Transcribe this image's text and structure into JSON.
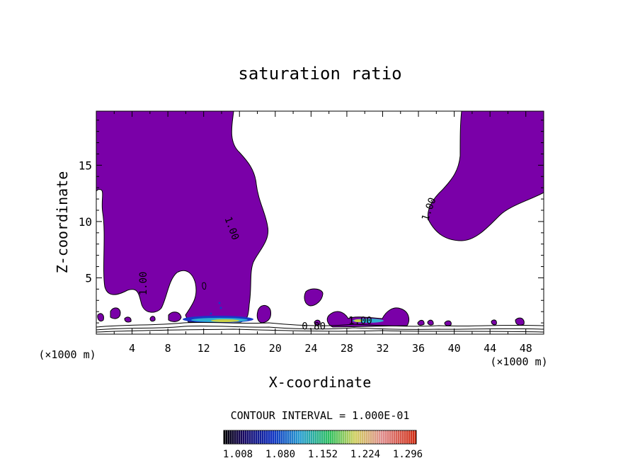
{
  "chart_data": {
    "type": "contour",
    "title": "saturation ratio",
    "xlabel": "X-coordinate",
    "ylabel": "Z-coordinate",
    "x_unit_left": "(×1000 m)",
    "x_unit_right": "(×1000 m)",
    "xlim": [
      0,
      50
    ],
    "ylim": [
      0,
      19.8
    ],
    "x_ticks": [
      4,
      8,
      12,
      16,
      20,
      24,
      28,
      32,
      36,
      40,
      44,
      48
    ],
    "y_ticks": [
      5,
      10,
      15
    ],
    "contour_labels": [
      {
        "text": "1.00",
        "x": 5.6,
        "z": 4.5
      },
      {
        "text": "1.00",
        "x": 14.8,
        "z": 9.3
      },
      {
        "text": "1.00",
        "x": 37.5,
        "z": 11.0
      },
      {
        "text": "1.00",
        "x": 29.5,
        "z": 0.9
      },
      {
        "text": "0.80",
        "x": 24.3,
        "z": 0.4
      }
    ],
    "contour_interval": "CONTOUR INTERVAL = 1.000E-01",
    "colorbar_labels": [
      "1.008",
      "1.080",
      "1.152",
      "1.224",
      "1.296"
    ],
    "colorbar_range": [
      0.98,
      1.33
    ],
    "fill_color": "#7a00a8"
  }
}
